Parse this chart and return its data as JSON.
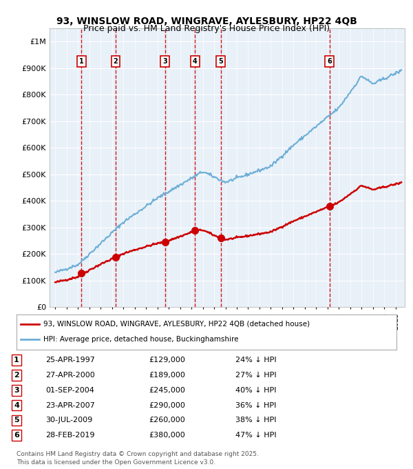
{
  "title_line1": "93, WINSLOW ROAD, WINGRAVE, AYLESBURY, HP22 4QB",
  "title_line2": "Price paid vs. HM Land Registry's House Price Index (HPI)",
  "ylabel": "",
  "background_color": "#ffffff",
  "plot_bg_color": "#e8f0f8",
  "grid_color": "#ffffff",
  "hpi_color": "#6baed6",
  "price_color": "#cc0000",
  "sale_marker_color": "#cc0000",
  "sale_vline_color": "#cc0000",
  "ytick_labels": [
    "£0",
    "£100K",
    "£200K",
    "£300K",
    "£400K",
    "£500K",
    "£600K",
    "£700K",
    "£800K",
    "£900K",
    "£1M"
  ],
  "ytick_values": [
    0,
    100000,
    200000,
    300000,
    400000,
    500000,
    600000,
    700000,
    800000,
    900000,
    1000000
  ],
  "ylim": [
    0,
    1050000
  ],
  "xlim_start": 1994.5,
  "xlim_end": 2025.8,
  "sales": [
    {
      "num": 1,
      "year": 1997.32,
      "price": 129000,
      "label": "1"
    },
    {
      "num": 2,
      "year": 2000.32,
      "price": 189000,
      "label": "2"
    },
    {
      "num": 3,
      "year": 2004.67,
      "price": 245000,
      "label": "3"
    },
    {
      "num": 4,
      "year": 2007.32,
      "price": 290000,
      "label": "4"
    },
    {
      "num": 5,
      "year": 2009.58,
      "price": 260000,
      "label": "5"
    },
    {
      "num": 6,
      "year": 2019.17,
      "price": 380000,
      "label": "6"
    }
  ],
  "table_rows": [
    {
      "num": "1",
      "date": "25-APR-1997",
      "price": "£129,000",
      "hpi": "24% ↓ HPI"
    },
    {
      "num": "2",
      "date": "27-APR-2000",
      "price": "£189,000",
      "hpi": "27% ↓ HPI"
    },
    {
      "num": "3",
      "date": "01-SEP-2004",
      "price": "£245,000",
      "hpi": "40% ↓ HPI"
    },
    {
      "num": "4",
      "date": "23-APR-2007",
      "price": "£290,000",
      "hpi": "36% ↓ HPI"
    },
    {
      "num": "5",
      "date": "30-JUL-2009",
      "price": "£260,000",
      "hpi": "38% ↓ HPI"
    },
    {
      "num": "6",
      "date": "28-FEB-2019",
      "price": "£380,000",
      "hpi": "47% ↓ HPI"
    }
  ],
  "legend_line1": "93, WINSLOW ROAD, WINGRAVE, AYLESBURY, HP22 4QB (detached house)",
  "legend_line2": "HPI: Average price, detached house, Buckinghamshire",
  "footnote": "Contains HM Land Registry data © Crown copyright and database right 2025.\nThis data is licensed under the Open Government Licence v3.0."
}
